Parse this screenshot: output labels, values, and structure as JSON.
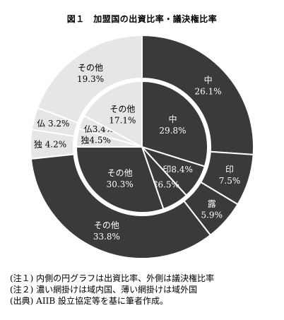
{
  "chart_data": {
    "type": "pie",
    "title": "図１　加盟国の出資比率・議決権比率",
    "rings": [
      {
        "ring": "inner",
        "slices": [
          {
            "label": "中",
            "value": 29.8,
            "value_label": "29.8%",
            "shade": "dark"
          },
          {
            "label": "印",
            "value": 8.4,
            "value_label": "8.4%",
            "shade": "dark"
          },
          {
            "label": "露",
            "value": 6.5,
            "value_label": "6.5%",
            "shade": "dark"
          },
          {
            "label": "その他",
            "value": 30.3,
            "value_label": "30.3%",
            "shade": "dark"
          },
          {
            "label": "独",
            "value": 4.5,
            "value_label": "4.5%",
            "shade": "light"
          },
          {
            "label": "仏",
            "value": 3.4,
            "value_label": "3.4%",
            "shade": "light"
          },
          {
            "label": "その他",
            "value": 17.1,
            "value_label": "17.1%",
            "shade": "light"
          }
        ]
      },
      {
        "ring": "outer",
        "slices": [
          {
            "label": "中",
            "value": 26.1,
            "value_label": "26.1%",
            "shade": "dark"
          },
          {
            "label": "印",
            "value": 7.5,
            "value_label": "7.5%",
            "shade": "dark"
          },
          {
            "label": "露",
            "value": 5.9,
            "value_label": "5.9%",
            "shade": "dark"
          },
          {
            "label": "その他",
            "value": 33.8,
            "value_label": "33.8%",
            "shade": "dark"
          },
          {
            "label": "独",
            "value": 4.2,
            "value_label": "4.2%",
            "shade": "light"
          },
          {
            "label": "仏",
            "value": 3.2,
            "value_label": "3.2%",
            "shade": "light"
          },
          {
            "label": "その他",
            "value": 19.3,
            "value_label": "19.3%",
            "shade": "light"
          }
        ]
      }
    ],
    "colors": {
      "dark": "#3a3a3a",
      "light": "#e6e6e6",
      "stroke": "#ffffff",
      "text_on_dark": "#ffffff",
      "text_on_light": "#000000"
    }
  },
  "notes": [
    "(注１) 内側の円グラフは出資比率、外側は議決権比率",
    "(注２) 濃い網掛けは域内国、薄い網掛けは域外国",
    "(出典) AIIB 設立協定等を基に筆者作成。"
  ]
}
